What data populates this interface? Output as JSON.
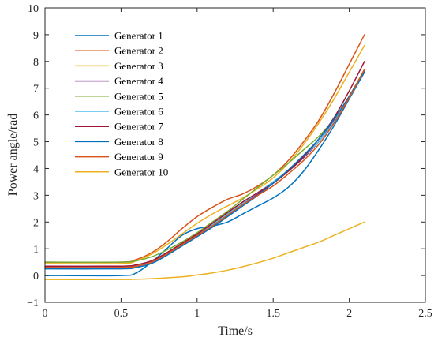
{
  "chart_data": {
    "type": "line",
    "title": "",
    "xlabel": "Time/s",
    "ylabel": "Power angle/rad",
    "xlim": [
      0,
      2.5
    ],
    "ylim": [
      -1,
      10
    ],
    "xticks": [
      0,
      0.5,
      1,
      1.5,
      2,
      2.5
    ],
    "xtick_labels": [
      "0",
      "0.5",
      "1",
      "1.5",
      "2",
      "2.5"
    ],
    "yticks": [
      -1,
      0,
      1,
      2,
      3,
      4,
      5,
      6,
      7,
      8,
      9,
      10
    ],
    "ytick_labels": [
      "−1",
      "0",
      "1",
      "2",
      "3",
      "4",
      "5",
      "6",
      "7",
      "8",
      "9",
      "10"
    ],
    "grid": false,
    "legend_position": "top-left",
    "series": [
      {
        "name": "Generator 1",
        "color": "#0072BD",
        "x": [
          0,
          0.5,
          0.6,
          0.7,
          0.8,
          0.9,
          1.0,
          1.1,
          1.2,
          1.3,
          1.4,
          1.5,
          1.6,
          1.7,
          1.8,
          1.9,
          2.0,
          2.1
        ],
        "y": [
          0.0,
          0.0,
          0.1,
          0.5,
          1.0,
          1.5,
          1.75,
          1.85,
          2.0,
          2.3,
          2.6,
          2.9,
          3.3,
          3.9,
          4.7,
          5.6,
          6.6,
          7.6
        ]
      },
      {
        "name": "Generator 2",
        "color": "#D95319",
        "x": [
          0,
          0.5,
          0.6,
          0.7,
          0.8,
          0.9,
          1.0,
          1.1,
          1.2,
          1.3,
          1.4,
          1.5,
          1.6,
          1.7,
          1.8,
          1.9,
          2.0,
          2.1
        ],
        "y": [
          0.5,
          0.5,
          0.6,
          0.85,
          1.25,
          1.75,
          2.2,
          2.55,
          2.85,
          3.05,
          3.35,
          3.75,
          4.3,
          5.0,
          5.8,
          6.8,
          7.9,
          9.0
        ]
      },
      {
        "name": "Generator 3",
        "color": "#EDB120",
        "x": [
          0,
          0.5,
          0.6,
          0.7,
          0.8,
          0.9,
          1.0,
          1.1,
          1.2,
          1.3,
          1.4,
          1.5,
          1.6,
          1.7,
          1.8,
          1.9,
          2.0,
          2.1
        ],
        "y": [
          0.45,
          0.45,
          0.55,
          0.8,
          1.15,
          1.55,
          1.95,
          2.3,
          2.6,
          2.9,
          3.25,
          3.65,
          4.2,
          4.9,
          5.7,
          6.6,
          7.6,
          8.6
        ]
      },
      {
        "name": "Generator 4",
        "color": "#7E2F8E",
        "x": [
          0,
          0.5,
          0.6,
          0.7,
          0.8,
          0.9,
          1.0,
          1.1,
          1.2,
          1.3,
          1.4,
          1.5,
          1.6,
          1.7,
          1.8,
          1.9,
          2.0,
          2.1
        ],
        "y": [
          0.3,
          0.3,
          0.35,
          0.5,
          0.8,
          1.15,
          1.5,
          1.85,
          2.25,
          2.65,
          3.05,
          3.45,
          3.9,
          4.4,
          5.0,
          5.8,
          6.7,
          7.7
        ]
      },
      {
        "name": "Generator 5",
        "color": "#77AC30",
        "x": [
          0,
          0.5,
          0.6,
          0.7,
          0.8,
          0.9,
          1.0,
          1.1,
          1.2,
          1.3,
          1.4,
          1.5,
          1.6,
          1.7,
          1.8,
          1.9,
          2.0,
          2.1
        ],
        "y": [
          0.5,
          0.5,
          0.55,
          0.7,
          0.95,
          1.25,
          1.6,
          2.0,
          2.4,
          2.85,
          3.3,
          3.75,
          4.2,
          4.7,
          5.2,
          5.85,
          6.7,
          7.7
        ]
      },
      {
        "name": "Generator 6",
        "color": "#4DBEEE",
        "x": [
          0,
          0.5,
          0.6,
          0.7,
          0.8,
          0.9,
          1.0,
          1.1,
          1.2,
          1.3,
          1.4,
          1.5,
          1.6,
          1.7,
          1.8,
          1.9,
          2.0,
          2.1
        ],
        "y": [
          0.35,
          0.35,
          0.4,
          0.55,
          0.85,
          1.2,
          1.55,
          1.9,
          2.3,
          2.7,
          3.1,
          3.5,
          3.95,
          4.45,
          5.0,
          5.75,
          6.65,
          7.7
        ]
      },
      {
        "name": "Generator 7",
        "color": "#A2142F",
        "x": [
          0,
          0.5,
          0.6,
          0.7,
          0.8,
          0.9,
          1.0,
          1.1,
          1.2,
          1.3,
          1.4,
          1.5,
          1.6,
          1.7,
          1.8,
          1.9,
          2.0,
          2.1
        ],
        "y": [
          0.35,
          0.35,
          0.4,
          0.55,
          0.85,
          1.2,
          1.55,
          1.95,
          2.35,
          2.75,
          3.1,
          3.45,
          3.9,
          4.45,
          5.1,
          5.9,
          6.9,
          8.0
        ]
      },
      {
        "name": "Generator 8",
        "color": "#0072BD",
        "x": [
          0,
          0.5,
          0.6,
          0.7,
          0.8,
          0.9,
          1.0,
          1.1,
          1.2,
          1.3,
          1.4,
          1.5,
          1.6,
          1.7,
          1.8,
          1.9,
          2.0,
          2.1
        ],
        "y": [
          0.25,
          0.25,
          0.3,
          0.45,
          0.75,
          1.1,
          1.45,
          1.8,
          2.2,
          2.6,
          3.0,
          3.45,
          3.95,
          4.5,
          5.1,
          5.85,
          6.7,
          7.65
        ]
      },
      {
        "name": "Generator 9",
        "color": "#D95319",
        "x": [
          0,
          0.5,
          0.6,
          0.7,
          0.8,
          0.9,
          1.0,
          1.1,
          1.2,
          1.3,
          1.4,
          1.5,
          1.6,
          1.7,
          1.8,
          1.9,
          2.0,
          2.1
        ],
        "y": [
          0.3,
          0.3,
          0.35,
          0.5,
          0.8,
          1.15,
          1.5,
          1.85,
          2.25,
          2.65,
          3.0,
          3.35,
          3.8,
          4.3,
          4.9,
          5.7,
          6.65,
          7.7
        ]
      },
      {
        "name": "Generator 10",
        "color": "#EDB120",
        "x": [
          0,
          0.5,
          0.7,
          0.9,
          1.0,
          1.1,
          1.2,
          1.3,
          1.4,
          1.5,
          1.6,
          1.7,
          1.8,
          1.9,
          2.0,
          2.1
        ],
        "y": [
          -0.15,
          -0.15,
          -0.12,
          -0.05,
          0.02,
          0.1,
          0.2,
          0.33,
          0.48,
          0.65,
          0.85,
          1.05,
          1.25,
          1.5,
          1.75,
          2.0
        ]
      }
    ]
  }
}
